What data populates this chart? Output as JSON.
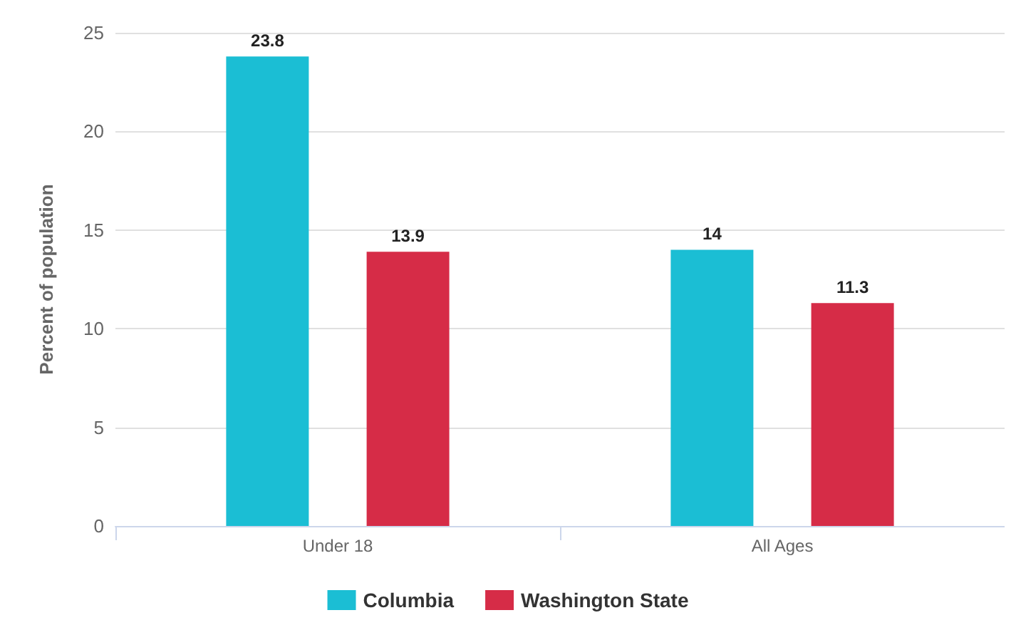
{
  "chart_data": {
    "type": "bar",
    "ylabel": "Percent of population",
    "categories": [
      "Under 18",
      "All Ages"
    ],
    "series": [
      {
        "name": "Columbia",
        "color": "#1bbed4",
        "values": [
          23.8,
          14
        ]
      },
      {
        "name": "Washington State",
        "color": "#d62c47",
        "values": [
          13.9,
          11.3
        ]
      }
    ],
    "ylim": [
      0,
      25
    ],
    "yticks": [
      0,
      5,
      10,
      15,
      20,
      25
    ],
    "grid": "y",
    "legend": "bottom",
    "data_labels": true
  }
}
